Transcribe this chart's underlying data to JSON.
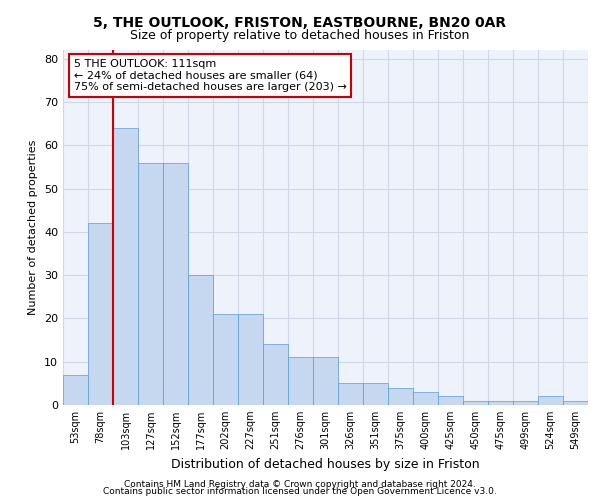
{
  "title1": "5, THE OUTLOOK, FRISTON, EASTBOURNE, BN20 0AR",
  "title2": "Size of property relative to detached houses in Friston",
  "xlabel": "Distribution of detached houses by size in Friston",
  "ylabel": "Number of detached properties",
  "categories": [
    "53sqm",
    "78sqm",
    "103sqm",
    "127sqm",
    "152sqm",
    "177sqm",
    "202sqm",
    "227sqm",
    "251sqm",
    "276sqm",
    "301sqm",
    "326sqm",
    "351sqm",
    "375sqm",
    "400sqm",
    "425sqm",
    "450sqm",
    "475sqm",
    "499sqm",
    "524sqm",
    "549sqm"
  ],
  "bar_values": [
    7,
    42,
    64,
    56,
    56,
    30,
    21,
    21,
    14,
    11,
    11,
    5,
    5,
    4,
    3,
    2,
    1,
    1,
    1,
    2,
    1
  ],
  "bar_color": "#c5d8f0",
  "bar_edge_color": "#5b9bd5",
  "grid_color": "#d0d8e8",
  "background_color": "#eef2fa",
  "vline_x_index": 2,
  "vline_color": "#cc0000",
  "annotation_text": "5 THE OUTLOOK: 111sqm\n← 24% of detached houses are smaller (64)\n75% of semi-detached houses are larger (203) →",
  "annotation_box_color": "#ffffff",
  "annotation_box_edge": "#cc0000",
  "footer1": "Contains HM Land Registry data © Crown copyright and database right 2024.",
  "footer2": "Contains public sector information licensed under the Open Government Licence v3.0.",
  "ylim": [
    0,
    82
  ],
  "yticks": [
    0,
    10,
    20,
    30,
    40,
    50,
    60,
    70,
    80
  ]
}
